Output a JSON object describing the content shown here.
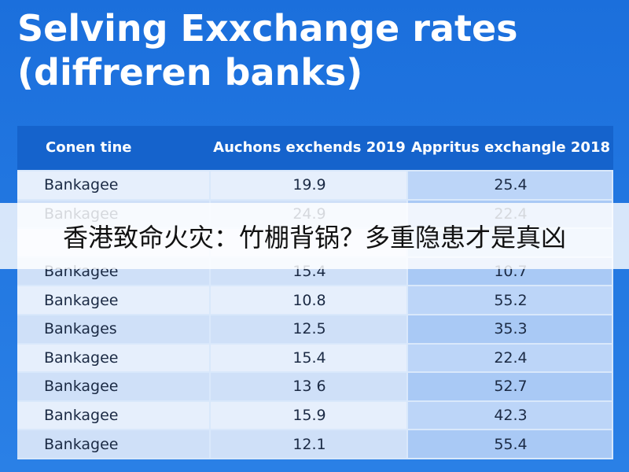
{
  "header": {
    "title": [
      "Selving Exxchange rates",
      "(diffreren banks)"
    ]
  },
  "table": {
    "columns": [
      "Conen tine",
      "Auchons exchends 2019",
      "Appritus exchangle 2018"
    ],
    "rows": [
      [
        "Bankagee",
        "19.9",
        "25.4"
      ],
      [
        "Bankagee",
        "24.9",
        "22.4"
      ],
      [
        "Bankagee",
        "15.4",
        "10.7"
      ],
      [
        "Bankagee",
        "10.8",
        "55.2"
      ],
      [
        "Bankages",
        "12.5",
        "35.3"
      ],
      [
        "Bankagee",
        "15.4",
        "22.4"
      ],
      [
        "Bankagee",
        "13 6",
        "52.7"
      ],
      [
        "Bankagee",
        "15.9",
        "42.3"
      ],
      [
        "Bankagee",
        "12.1",
        "55.4"
      ]
    ]
  },
  "banner": {
    "text": "香港致命火灾：竹棚背锅？多重隐患才是真凶"
  }
}
